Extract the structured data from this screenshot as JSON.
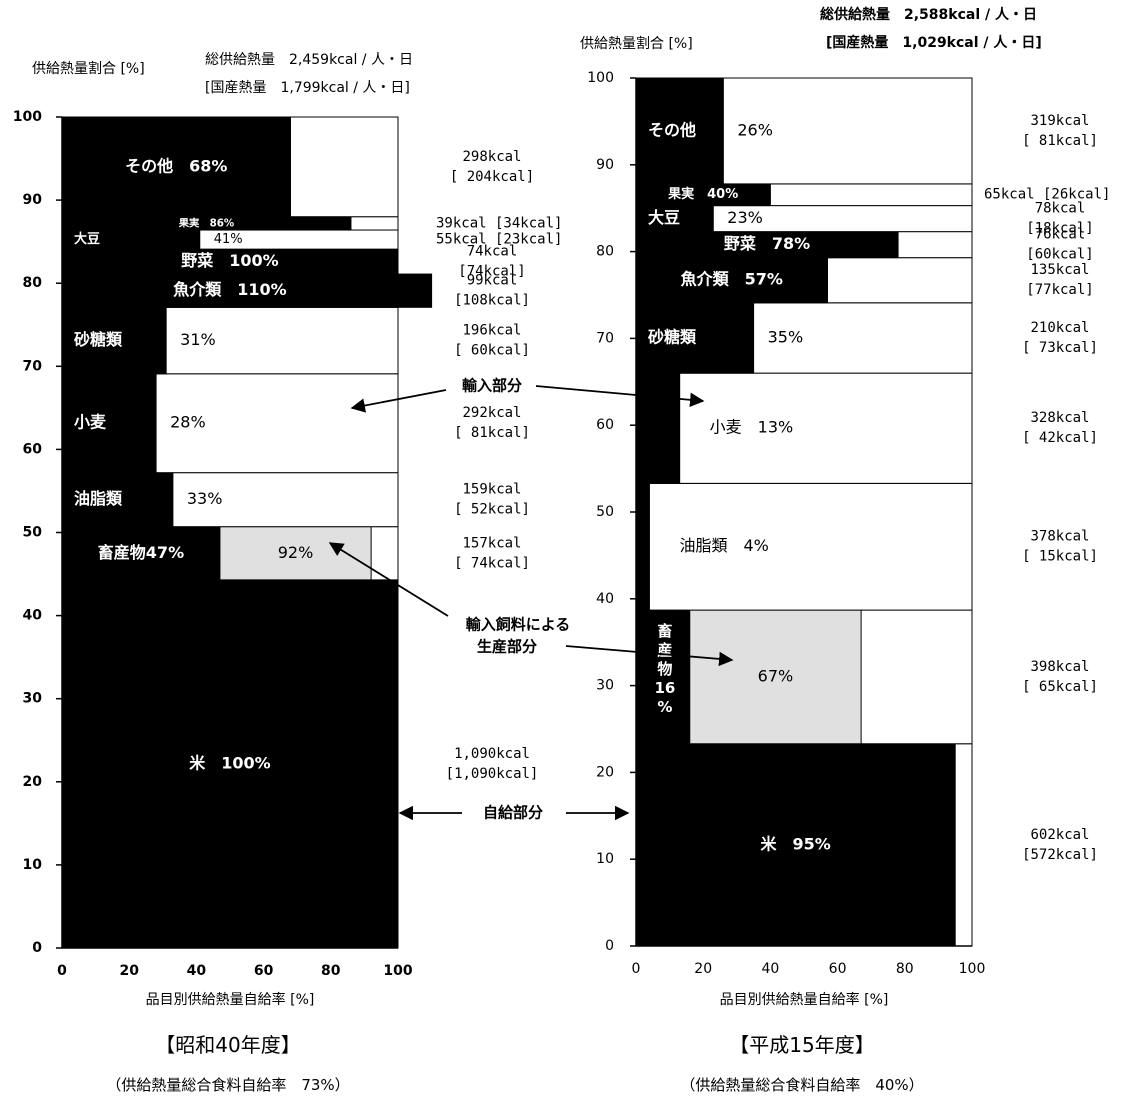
{
  "chart_data": [
    {
      "type": "bar",
      "subtype": "mosaic",
      "title": "【昭和40年度】",
      "subtitle": "（供給熱量総合食料自給率　73%）",
      "xlabel": "品目別供給熱量自給率 [%]",
      "ylabel": "供給熱量割合 [%]",
      "xlim": [
        0,
        100
      ],
      "ylim": [
        0,
        100
      ],
      "xticks": [
        "0",
        "20",
        "40",
        "60",
        "80",
        "100"
      ],
      "yticks": [
        "0",
        "10",
        "20",
        "30",
        "40",
        "50",
        "60",
        "70",
        "80",
        "90",
        "100"
      ],
      "total_line1": "総供給熱量　2,459kcal / 人・日",
      "total_line2": "[国産熱量　1,799kcal / 人・日]",
      "categories": [
        {
          "name": "米",
          "y0": 0,
          "y1": 44.3,
          "rate": 100,
          "label": "米　100%",
          "kcal": "1,090kcal",
          "domestic": "[1,090kcal]"
        },
        {
          "name": "畜産物",
          "y0": 44.3,
          "y1": 50.7,
          "rate": 47,
          "feed_rate": 92,
          "label": "畜産物47%",
          "feed_label": "92%",
          "kcal": "157kcal",
          "domestic": "[ 74kcal]"
        },
        {
          "name": "油脂類",
          "y0": 50.7,
          "y1": 57.2,
          "rate": 33,
          "label": "油脂類",
          "rate_label": "33%",
          "kcal": "159kcal",
          "domestic": "[ 52kcal]"
        },
        {
          "name": "小麦",
          "y0": 57.2,
          "y1": 69.1,
          "rate": 28,
          "label": "小麦",
          "rate_label": "28%",
          "kcal": "292kcal",
          "domestic": "[ 81kcal]"
        },
        {
          "name": "砂糖類",
          "y0": 69.1,
          "y1": 77.1,
          "rate": 31,
          "label": "砂糖類",
          "rate_label": "31%",
          "kcal": "196kcal",
          "domestic": "[ 60kcal]"
        },
        {
          "name": "魚介類",
          "y0": 77.1,
          "y1": 81.1,
          "rate": 110,
          "label": "魚介類　110%",
          "kcal": "99kcal",
          "domestic": "[108kcal]"
        },
        {
          "name": "野菜",
          "y0": 81.1,
          "y1": 84.1,
          "rate": 100,
          "label": "野菜　100%",
          "kcal": "74kcal",
          "domestic": "[74kcal]"
        },
        {
          "name": "大豆",
          "y0": 84.1,
          "y1": 86.4,
          "rate": 41,
          "label": "大豆",
          "rate_label": "41%",
          "kcal": "55kcal",
          "domestic": "[23kcal]"
        },
        {
          "name": "果実",
          "y0": 86.4,
          "y1": 88.0,
          "rate": 86,
          "label": "果実　86%",
          "kcal": "39kcal",
          "domestic": "[34kcal]"
        },
        {
          "name": "その他",
          "y0": 88.0,
          "y1": 100,
          "rate": 68,
          "label": "その他　68%",
          "kcal": "298kcal",
          "domestic": "[ 204kcal]"
        }
      ]
    },
    {
      "type": "bar",
      "subtype": "mosaic",
      "title": "【平成15年度】",
      "subtitle": "（供給熱量総合食料自給率　40%）",
      "xlabel": "品目別供給熱量自給率 [%]",
      "ylabel": "供給熱量割合 [%]",
      "xlim": [
        0,
        100
      ],
      "ylim": [
        0,
        100
      ],
      "xticks": [
        "0",
        "20",
        "40",
        "60",
        "80",
        "100"
      ],
      "yticks": [
        "0",
        "10",
        "20",
        "30",
        "40",
        "50",
        "60",
        "70",
        "80",
        "90",
        "100"
      ],
      "total_line1": "総供給熱量　2,588kcal / 人・日",
      "total_line2": "[国産熱量　1,029kcal / 人・日]",
      "categories": [
        {
          "name": "米",
          "y0": 0,
          "y1": 23.3,
          "rate": 95,
          "label": "米　95%",
          "kcal": "602kcal",
          "domestic": "[572kcal]"
        },
        {
          "name": "畜産物",
          "y0": 23.3,
          "y1": 38.7,
          "rate": 16,
          "feed_rate": 67,
          "label": "畜産物16%",
          "feed_label": "67%",
          "kcal": "398kcal",
          "domestic": "[ 65kcal]"
        },
        {
          "name": "油脂類",
          "y0": 38.7,
          "y1": 53.3,
          "rate": 4,
          "label": "油脂類　4%",
          "kcal": "378kcal",
          "domestic": "[ 15kcal]"
        },
        {
          "name": "小麦",
          "y0": 53.3,
          "y1": 66.0,
          "rate": 13,
          "label": "小麦　13%",
          "kcal": "328kcal",
          "domestic": "[ 42kcal]"
        },
        {
          "name": "砂糖類",
          "y0": 66.0,
          "y1": 74.1,
          "rate": 35,
          "label": "砂糖類",
          "rate_label": "35%",
          "kcal": "210kcal",
          "domestic": "[ 73kcal]"
        },
        {
          "name": "魚介類",
          "y0": 74.1,
          "y1": 79.3,
          "rate": 57,
          "label": "魚介類　57%",
          "kcal": "135kcal",
          "domestic": "[77kcal]"
        },
        {
          "name": "野菜",
          "y0": 79.3,
          "y1": 82.3,
          "rate": 78,
          "label": "野菜　78%",
          "kcal": "76kcal",
          "domestic": "[60kcal]"
        },
        {
          "name": "大豆",
          "y0": 82.3,
          "y1": 85.3,
          "rate": 23,
          "label": "大豆",
          "rate_label": "23%",
          "kcal": "78kcal",
          "domestic": "[18kcal]"
        },
        {
          "name": "果実",
          "y0": 85.3,
          "y1": 87.8,
          "rate": 40,
          "label": "果実　40%",
          "kcal": "65kcal",
          "domestic": "[26kcal]"
        },
        {
          "name": "その他",
          "y0": 87.8,
          "y1": 100,
          "rate": 26,
          "label": "その他",
          "rate_label": "26%",
          "kcal": "319kcal",
          "domestic": "[ 81kcal]"
        }
      ]
    }
  ],
  "annotations": {
    "import_part": "輸入部分",
    "self_sufficient_part": "自給部分",
    "feed_line1": "輸入飼料による",
    "feed_line2": "生産部分"
  },
  "colors": {
    "domestic": "#000000",
    "imported": "#ffffff",
    "imported_feed": "#e0e0e0"
  }
}
